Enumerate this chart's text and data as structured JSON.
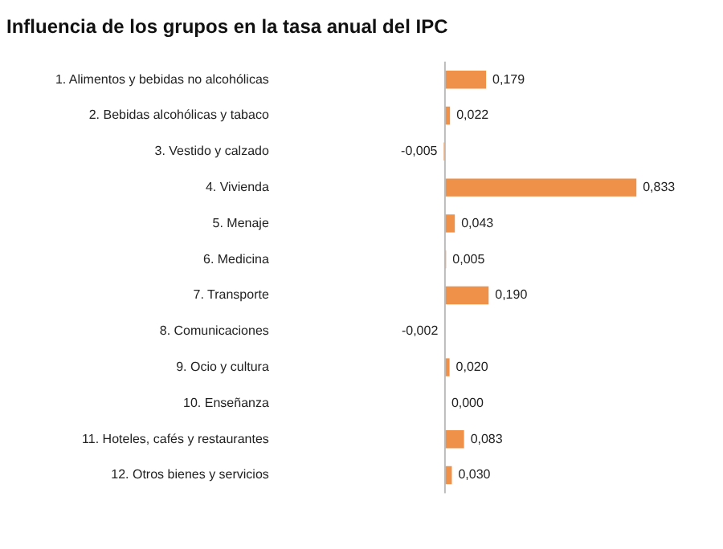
{
  "chart_data": {
    "type": "bar",
    "orientation": "horizontal",
    "title": "Influencia de los grupos en la tasa anual del IPC",
    "categories": [
      "1. Alimentos y bebidas no alcohólicas",
      "2. Bebidas alcohólicas y tabaco",
      "3. Vestido y calzado",
      "4. Vivienda",
      "5. Menaje",
      "6. Medicina",
      "7. Transporte",
      "8. Comunicaciones",
      "9. Ocio y cultura",
      "10. Enseñanza",
      "11. Hoteles, cafés y restaurantes",
      "12. Otros bienes y servicios"
    ],
    "values": [
      0.179,
      0.022,
      -0.005,
      0.833,
      0.043,
      0.005,
      0.19,
      -0.002,
      0.02,
      0.0,
      0.083,
      0.03
    ],
    "value_labels": [
      "0,179",
      "0,022",
      "-0,005",
      "0,833",
      "0,043",
      "0,005",
      "0,190",
      "-0,002",
      "0,020",
      "0,000",
      "0,083",
      "0,030"
    ],
    "color": "#f0914a",
    "tick_labels": "y",
    "grid": false,
    "legend": false
  }
}
